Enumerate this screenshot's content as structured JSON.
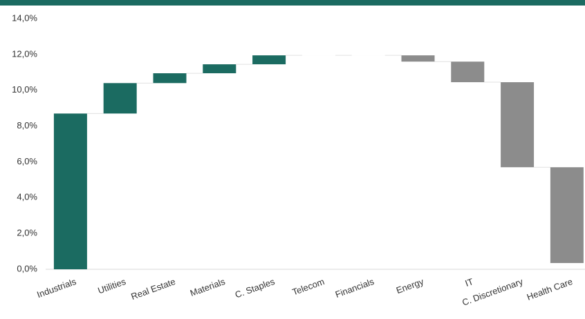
{
  "chart_data": {
    "type": "waterfall",
    "categories": [
      "Industrials",
      "Utilities",
      "Real Estate",
      "Materials",
      "C. Staples",
      "Telecom",
      "Financials",
      "Energy",
      "IT",
      "C. Discretionary",
      "Health Care"
    ],
    "values": [
      8.7,
      1.7,
      0.55,
      0.5,
      0.5,
      0,
      0,
      -0.35,
      -1.15,
      -4.75,
      -5.35
    ],
    "increase_color": "#1b6b61",
    "decrease_color": "#8c8c8c",
    "ylim": [
      0,
      14
    ],
    "yticks": [
      {
        "value": 0,
        "label": "0,0%"
      },
      {
        "value": 2,
        "label": "2,0%"
      },
      {
        "value": 4,
        "label": "4,0%"
      },
      {
        "value": 6,
        "label": "6,0%"
      },
      {
        "value": 8,
        "label": "8,0%"
      },
      {
        "value": 10,
        "label": "10,0%"
      },
      {
        "value": 12,
        "label": "12,0%"
      },
      {
        "value": 14,
        "label": "14,0%"
      }
    ],
    "grid": false
  }
}
